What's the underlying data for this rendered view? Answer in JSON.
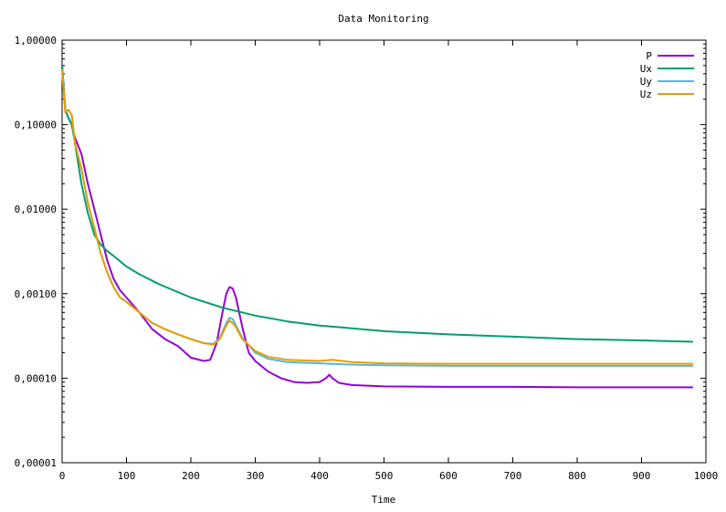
{
  "chart_data": {
    "type": "line",
    "title": "Data Monitoring",
    "xlabel": "Time",
    "ylabel": "",
    "xlim": [
      0,
      1000
    ],
    "ylim": [
      1e-05,
      1
    ],
    "yscale": "log",
    "grid": false,
    "legend_position": "top-right",
    "x_ticks": [
      "0",
      "100",
      "200",
      "300",
      "400",
      "500",
      "600",
      "700",
      "800",
      "900",
      "1000"
    ],
    "y_ticks": [
      "1,00000",
      "0,10000",
      "0,01000",
      "0,00100",
      "0,00010",
      "0,00001"
    ],
    "series": [
      {
        "name": "P",
        "color": "#9400d3",
        "x": [
          0,
          5,
          10,
          15,
          20,
          30,
          40,
          50,
          60,
          70,
          80,
          90,
          100,
          120,
          140,
          160,
          180,
          200,
          220,
          230,
          240,
          250,
          255,
          260,
          265,
          270,
          280,
          290,
          300,
          320,
          340,
          360,
          380,
          400,
          410,
          415,
          420,
          430,
          450,
          500,
          600,
          700,
          800,
          900,
          980
        ],
        "y": [
          0.5,
          0.15,
          0.12,
          0.1,
          0.07,
          0.045,
          0.02,
          0.01,
          0.005,
          0.0025,
          0.0015,
          0.0011,
          0.0009,
          0.0006,
          0.00038,
          0.00029,
          0.00024,
          0.000175,
          0.00016,
          0.000165,
          0.00026,
          0.00065,
          0.001,
          0.0012,
          0.00115,
          0.0009,
          0.0004,
          0.0002,
          0.00016,
          0.00012,
          0.0001,
          9e-05,
          8.8e-05,
          9e-05,
          0.0001,
          0.00011,
          0.0001,
          8.8e-05,
          8.3e-05,
          8e-05,
          7.9e-05,
          7.9e-05,
          7.8e-05,
          7.8e-05,
          7.8e-05
        ]
      },
      {
        "name": "Ux",
        "color": "#009e73",
        "x": [
          0,
          5,
          10,
          15,
          20,
          30,
          40,
          50,
          60,
          70,
          80,
          100,
          120,
          150,
          200,
          250,
          300,
          350,
          400,
          450,
          500,
          600,
          700,
          800,
          900,
          980
        ],
        "y": [
          0.5,
          0.15,
          0.12,
          0.1,
          0.06,
          0.02,
          0.009,
          0.005,
          0.0038,
          0.0032,
          0.0028,
          0.0021,
          0.0017,
          0.0013,
          0.0009,
          0.00068,
          0.00055,
          0.00047,
          0.00042,
          0.00039,
          0.00036,
          0.00033,
          0.00031,
          0.00029,
          0.00028,
          0.00027
        ]
      },
      {
        "name": "Uy",
        "color": "#56b4e9",
        "x": [
          0,
          5,
          10,
          15,
          20,
          30,
          40,
          50,
          60,
          70,
          80,
          90,
          100,
          120,
          140,
          160,
          180,
          200,
          220,
          235,
          245,
          255,
          260,
          265,
          270,
          280,
          300,
          320,
          350,
          400,
          450,
          500,
          600,
          700,
          800,
          900,
          980
        ],
        "y": [
          0.45,
          0.14,
          0.15,
          0.13,
          0.06,
          0.03,
          0.012,
          0.006,
          0.003,
          0.0018,
          0.0012,
          0.0009,
          0.0008,
          0.0006,
          0.00045,
          0.00038,
          0.00033,
          0.00029,
          0.00026,
          0.000255,
          0.0003,
          0.00045,
          0.00052,
          0.0005,
          0.00042,
          0.0003,
          0.0002,
          0.00017,
          0.000155,
          0.00015,
          0.000145,
          0.000142,
          0.00014,
          0.00014,
          0.00014,
          0.00014,
          0.00014
        ]
      },
      {
        "name": "Uz",
        "color": "#e69f00",
        "x": [
          0,
          5,
          10,
          15,
          20,
          30,
          40,
          50,
          60,
          70,
          80,
          90,
          100,
          120,
          140,
          160,
          180,
          200,
          220,
          235,
          245,
          255,
          260,
          265,
          270,
          280,
          300,
          320,
          350,
          400,
          420,
          450,
          500,
          600,
          700,
          800,
          900,
          980
        ],
        "y": [
          0.45,
          0.14,
          0.15,
          0.13,
          0.06,
          0.03,
          0.012,
          0.006,
          0.003,
          0.0018,
          0.0012,
          0.0009,
          0.0008,
          0.0006,
          0.00045,
          0.00038,
          0.00033,
          0.00029,
          0.00026,
          0.00025,
          0.00029,
          0.00042,
          0.00048,
          0.00045,
          0.0004,
          0.00029,
          0.00021,
          0.00018,
          0.000165,
          0.00016,
          0.000165,
          0.000155,
          0.00015,
          0.000148,
          0.000148,
          0.000148,
          0.000148,
          0.000148
        ]
      }
    ]
  }
}
